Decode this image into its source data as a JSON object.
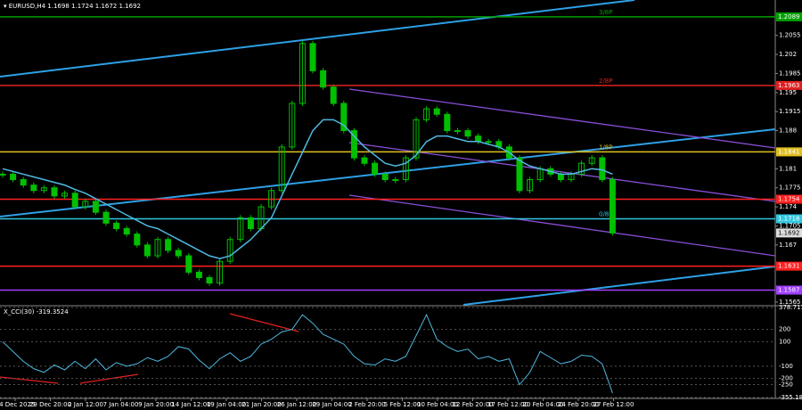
{
  "header": {
    "symbol": "EURUSD,H4",
    "ohlc": [
      1.1698,
      1.1724,
      1.1672,
      1.1692
    ]
  },
  "chart_data": [
    {
      "type": "candlestick",
      "color": "#00c000",
      "ma_color": "#4fb8e0",
      "closes": [
        1.18,
        1.179,
        1.178,
        1.177,
        1.1775,
        1.176,
        1.1765,
        1.174,
        1.175,
        1.173,
        1.171,
        1.17,
        1.169,
        1.167,
        1.165,
        1.168,
        1.166,
        1.165,
        1.162,
        1.161,
        1.16,
        1.164,
        1.168,
        1.172,
        1.17,
        1.174,
        1.177,
        1.185,
        1.193,
        1.204,
        1.199,
        1.196,
        1.193,
        1.188,
        1.183,
        1.182,
        1.18,
        1.179,
        1.179,
        1.183,
        1.19,
        1.192,
        1.191,
        1.188,
        1.188,
        1.187,
        1.186,
        1.186,
        1.185,
        1.183,
        1.177,
        1.179,
        1.181,
        1.18,
        1.179,
        1.18,
        1.182,
        1.183,
        1.179,
        1.1692
      ],
      "ma": [
        1.181,
        1.1805,
        1.18,
        1.1795,
        1.179,
        1.1785,
        1.178,
        1.1772,
        1.1765,
        1.1755,
        1.1745,
        1.1735,
        1.1725,
        1.1715,
        1.1705,
        1.17,
        1.169,
        1.168,
        1.167,
        1.166,
        1.165,
        1.1645,
        1.165,
        1.1665,
        1.168,
        1.17,
        1.172,
        1.176,
        1.18,
        1.184,
        1.188,
        1.19,
        1.19,
        1.189,
        1.187,
        1.185,
        1.1835,
        1.182,
        1.1815,
        1.182,
        1.1835,
        1.186,
        1.187,
        1.187,
        1.1865,
        1.186,
        1.186,
        1.1855,
        1.185,
        1.184,
        1.1825,
        1.1815,
        1.181,
        1.1805,
        1.18,
        1.18,
        1.1805,
        1.181,
        1.1808,
        1.18
      ],
      "ylim": [
        1.156,
        1.212
      ],
      "yticks": [
        1.2055,
        1.202,
        1.1985,
        1.195,
        1.1915,
        1.188,
        1.181,
        1.1775,
        1.174,
        1.1705,
        1.167,
        1.1565
      ],
      "levels": [
        {
          "value": 1.2089,
          "label": "3/8P",
          "color": "#00a000"
        },
        {
          "value": 1.1963,
          "label": "2/8P",
          "color": "#e02020"
        },
        {
          "value": 1.1841,
          "label": "1/8P",
          "color": "#e0c020"
        },
        {
          "value": 1.1754,
          "label": "",
          "color": "#ff2020"
        },
        {
          "value": 1.1718,
          "label": "0/8P",
          "color": "#30c8e0"
        },
        {
          "value": 1.1631,
          "label": "",
          "color": "#ff2020"
        },
        {
          "value": 1.1587,
          "label": "",
          "color": "#a040ff"
        }
      ],
      "current": 1.1692
    },
    {
      "type": "line",
      "title": "X_CCI(30) -319.3524",
      "color": "#4fb8e0",
      "values": [
        100,
        20,
        -60,
        -120,
        -150,
        -90,
        -130,
        -60,
        -120,
        -40,
        -130,
        -70,
        -100,
        -80,
        -30,
        -60,
        -20,
        60,
        40,
        -50,
        -120,
        -40,
        10,
        -60,
        -20,
        80,
        120,
        180,
        200,
        320,
        250,
        160,
        120,
        80,
        -20,
        -80,
        -90,
        -40,
        -60,
        -20,
        150,
        320,
        120,
        60,
        20,
        40,
        -40,
        -20,
        -60,
        -40,
        -250,
        -150,
        20,
        -30,
        -80,
        -60,
        -10,
        -20,
        -80,
        -319.3524
      ],
      "ylim": [
        -355.189,
        378.7116
      ],
      "yticks": [
        378.7116,
        200,
        100,
        -100,
        -200,
        -250,
        -355.189
      ]
    }
  ],
  "time_labels": [
    "24 Dec 2025",
    "29 Dec 20:00",
    "2 Jan 12:00",
    "7 Jan 04:00",
    "9 Jan 20:00",
    "14 Jan 12:00",
    "19 Jan 04:00",
    "21 Jan 20:00",
    "26 Jan 12:00",
    "29 Jan 04:00",
    "2 Feb 20:00",
    "5 Feb 12:00",
    "10 Feb 04:00",
    "12 Feb 20:00",
    "17 Feb 12:00",
    "20 Feb 04:00",
    "24 Feb 20:00",
    "27 Feb 12:00"
  ]
}
